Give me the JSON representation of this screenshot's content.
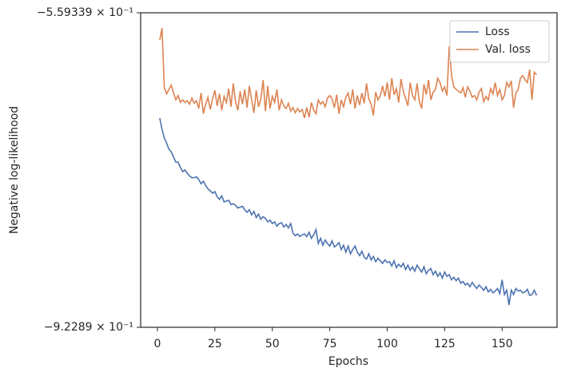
{
  "chart_data": {
    "type": "line",
    "xlabel": "Epochs",
    "ylabel": "Negative log-likelihood",
    "x": [
      1,
      2,
      3,
      4,
      5,
      6,
      7,
      8,
      9,
      10,
      11,
      12,
      13,
      14,
      15,
      16,
      17,
      18,
      19,
      20,
      21,
      22,
      23,
      24,
      25,
      26,
      27,
      28,
      29,
      30,
      31,
      32,
      33,
      34,
      35,
      36,
      37,
      38,
      39,
      40,
      41,
      42,
      43,
      44,
      45,
      46,
      47,
      48,
      49,
      50,
      51,
      52,
      53,
      54,
      55,
      56,
      57,
      58,
      59,
      60,
      61,
      62,
      63,
      64,
      65,
      66,
      67,
      68,
      69,
      70,
      71,
      72,
      73,
      74,
      75,
      76,
      77,
      78,
      79,
      80,
      81,
      82,
      83,
      84,
      85,
      86,
      87,
      88,
      89,
      90,
      91,
      92,
      93,
      94,
      95,
      96,
      97,
      98,
      99,
      100,
      101,
      102,
      103,
      104,
      105,
      106,
      107,
      108,
      109,
      110,
      111,
      112,
      113,
      114,
      115,
      116,
      117,
      118,
      119,
      120,
      121,
      122,
      123,
      124,
      125,
      126,
      127,
      128,
      129,
      130,
      131,
      132,
      133,
      134,
      135,
      136,
      137,
      138,
      139,
      140,
      141,
      142,
      143,
      144,
      145,
      146,
      147,
      148,
      149,
      150,
      151,
      152,
      153,
      154,
      155,
      156,
      157,
      158,
      159,
      160,
      161,
      162,
      163,
      164,
      165
    ],
    "series": [
      {
        "name": "Loss",
        "color": "#4c72b0",
        "values": [
          -0.681,
          -0.694,
          -0.704,
          -0.71,
          -0.717,
          -0.72,
          -0.726,
          -0.732,
          -0.732,
          -0.738,
          -0.743,
          -0.741,
          -0.745,
          -0.748,
          -0.75,
          -0.75,
          -0.749,
          -0.752,
          -0.757,
          -0.754,
          -0.759,
          -0.763,
          -0.765,
          -0.768,
          -0.766,
          -0.772,
          -0.775,
          -0.771,
          -0.778,
          -0.777,
          -0.776,
          -0.781,
          -0.78,
          -0.782,
          -0.785,
          -0.784,
          -0.783,
          -0.787,
          -0.79,
          -0.787,
          -0.793,
          -0.789,
          -0.796,
          -0.792,
          -0.798,
          -0.795,
          -0.797,
          -0.801,
          -0.799,
          -0.803,
          -0.801,
          -0.806,
          -0.803,
          -0.802,
          -0.807,
          -0.804,
          -0.808,
          -0.803,
          -0.814,
          -0.817,
          -0.815,
          -0.818,
          -0.816,
          -0.815,
          -0.818,
          -0.813,
          -0.82,
          -0.816,
          -0.81,
          -0.826,
          -0.82,
          -0.828,
          -0.822,
          -0.826,
          -0.829,
          -0.823,
          -0.83,
          -0.828,
          -0.825,
          -0.833,
          -0.828,
          -0.836,
          -0.829,
          -0.838,
          -0.833,
          -0.829,
          -0.836,
          -0.84,
          -0.835,
          -0.842,
          -0.844,
          -0.838,
          -0.845,
          -0.841,
          -0.847,
          -0.843,
          -0.846,
          -0.849,
          -0.845,
          -0.848,
          -0.847,
          -0.852,
          -0.846,
          -0.854,
          -0.85,
          -0.853,
          -0.849,
          -0.856,
          -0.851,
          -0.857,
          -0.853,
          -0.858,
          -0.851,
          -0.855,
          -0.859,
          -0.853,
          -0.861,
          -0.857,
          -0.855,
          -0.862,
          -0.858,
          -0.864,
          -0.86,
          -0.866,
          -0.859,
          -0.864,
          -0.862,
          -0.868,
          -0.865,
          -0.869,
          -0.866,
          -0.872,
          -0.87,
          -0.874,
          -0.872,
          -0.876,
          -0.871,
          -0.875,
          -0.878,
          -0.874,
          -0.877,
          -0.88,
          -0.876,
          -0.882,
          -0.879,
          -0.883,
          -0.881,
          -0.878,
          -0.884,
          -0.868,
          -0.885,
          -0.88,
          -0.897,
          -0.88,
          -0.885,
          -0.878,
          -0.881,
          -0.88,
          -0.883,
          -0.882,
          -0.879,
          -0.886,
          -0.885,
          -0.88,
          -0.886
        ]
      },
      {
        "name": "Val. loss",
        "color": "#dd8452",
        "values": [
          -0.591,
          -0.577,
          -0.646,
          -0.653,
          -0.648,
          -0.643,
          -0.652,
          -0.66,
          -0.655,
          -0.663,
          -0.66,
          -0.663,
          -0.661,
          -0.665,
          -0.658,
          -0.664,
          -0.661,
          -0.67,
          -0.652,
          -0.676,
          -0.665,
          -0.657,
          -0.671,
          -0.659,
          -0.649,
          -0.667,
          -0.653,
          -0.672,
          -0.656,
          -0.663,
          -0.647,
          -0.668,
          -0.641,
          -0.662,
          -0.672,
          -0.65,
          -0.665,
          -0.648,
          -0.669,
          -0.644,
          -0.66,
          -0.675,
          -0.649,
          -0.668,
          -0.659,
          -0.637,
          -0.673,
          -0.644,
          -0.67,
          -0.656,
          -0.663,
          -0.648,
          -0.672,
          -0.66,
          -0.667,
          -0.67,
          -0.664,
          -0.673,
          -0.669,
          -0.675,
          -0.67,
          -0.674,
          -0.671,
          -0.681,
          -0.669,
          -0.68,
          -0.663,
          -0.672,
          -0.676,
          -0.66,
          -0.665,
          -0.662,
          -0.668,
          -0.658,
          -0.655,
          -0.659,
          -0.669,
          -0.654,
          -0.676,
          -0.66,
          -0.668,
          -0.657,
          -0.652,
          -0.665,
          -0.648,
          -0.67,
          -0.655,
          -0.666,
          -0.652,
          -0.664,
          -0.641,
          -0.659,
          -0.665,
          -0.678,
          -0.651,
          -0.66,
          -0.655,
          -0.644,
          -0.656,
          -0.64,
          -0.66,
          -0.635,
          -0.654,
          -0.647,
          -0.663,
          -0.636,
          -0.65,
          -0.658,
          -0.667,
          -0.64,
          -0.655,
          -0.66,
          -0.641,
          -0.662,
          -0.67,
          -0.642,
          -0.654,
          -0.637,
          -0.66,
          -0.651,
          -0.648,
          -0.635,
          -0.64,
          -0.65,
          -0.645,
          -0.655,
          -0.598,
          -0.632,
          -0.645,
          -0.648,
          -0.65,
          -0.652,
          -0.646,
          -0.657,
          -0.645,
          -0.65,
          -0.657,
          -0.655,
          -0.66,
          -0.651,
          -0.647,
          -0.662,
          -0.656,
          -0.66,
          -0.647,
          -0.653,
          -0.64,
          -0.655,
          -0.648,
          -0.66,
          -0.655,
          -0.64,
          -0.645,
          -0.638,
          -0.669,
          -0.652,
          -0.648,
          -0.635,
          -0.632,
          -0.637,
          -0.64,
          -0.625,
          -0.66,
          -0.628,
          -0.631
        ]
      }
    ],
    "xlim": [
      -7.3,
      173.9
    ],
    "xticks": [
      0,
      25,
      50,
      75,
      100,
      125,
      150
    ],
    "ylim": [
      -0.92289,
      -0.559339
    ],
    "yticks": [
      {
        "value": -0.92289,
        "label": "−9.2289 × 10⁻¹"
      },
      {
        "value": -0.559339,
        "label": "−5.59339 × 10⁻¹"
      }
    ],
    "legend": "upper right"
  }
}
